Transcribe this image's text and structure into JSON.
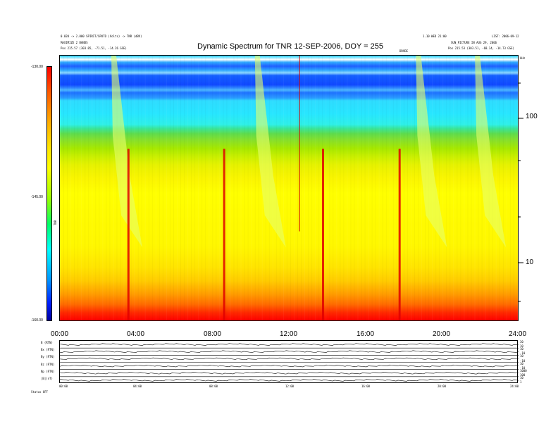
{
  "header": {
    "left_line1": "0.020 -> 2.000 SPIRIT/SPUTD (Volts) -> TNR (dBV)",
    "left_line2": "MAXIMIZE 2 BANDS",
    "left_line3": "Pos    215.57 (303.05, -71.51, -14.26 GSE)",
    "right_line1": "1.10 WED 21:00",
    "right_line2": "SUN_PICTURE IN AUG 29, 2006",
    "right_line3": "Pos    215.53 (303.51, -68.14, -14.73 GSE)",
    "far_right": "LIST: 2006-09-12"
  },
  "chart_data": [
    {
      "type": "heatmap",
      "title": "Dynamic Spectrum for TNR 12-SEP-2006, DOY = 255",
      "xlabel": "",
      "ylabel": "",
      "x_ticks": [
        "00:00",
        "04:00",
        "08:00",
        "12:00",
        "16:00",
        "20:00",
        "24:00"
      ],
      "xlim": [
        "00:00",
        "24:00"
      ],
      "y_ticks": [
        "100",
        "10"
      ],
      "y_unit": "kHz",
      "y_scale": "log",
      "colorbar": {
        "label": "TNR",
        "ticks": [
          "-130.00",
          "-145.00",
          "-160.00"
        ],
        "colors": [
          "#ff0000",
          "#ffff00",
          "#00ffff",
          "#0000a0"
        ]
      },
      "marker_label": "DRVDE",
      "events": [
        {
          "time": "02:50",
          "type": "drifting-burst"
        },
        {
          "time": "03:35",
          "type": "intense-vertical"
        },
        {
          "time": "08:35",
          "type": "intense-vertical"
        },
        {
          "time": "10:20",
          "type": "drifting-burst"
        },
        {
          "time": "12:30",
          "type": "instrumental-line"
        },
        {
          "time": "13:45",
          "type": "intense-vertical"
        },
        {
          "time": "17:45",
          "type": "intense-vertical"
        },
        {
          "time": "18:45",
          "type": "drifting-burst"
        },
        {
          "time": "21:50",
          "type": "drifting-burst"
        }
      ]
    },
    {
      "type": "line",
      "title": "",
      "panels": [
        {
          "label": "B (RTN)",
          "right_ticks": [
            "30",
            "10"
          ]
        },
        {
          "label": "Bx (RTN)",
          "right_ticks": [
            "10",
            "-10"
          ]
        },
        {
          "label": "By (RTN)",
          "right_ticks": [
            "10",
            "-10"
          ]
        },
        {
          "label": "Bz (RTN)",
          "right_ticks": [
            "10",
            "-10"
          ]
        },
        {
          "label": "Np (RTN)",
          "right_ticks": [
            "1000",
            "100"
          ]
        },
        {
          "label": "|B|(nT)",
          "right_ticks": [
            "10",
            "1"
          ]
        }
      ],
      "x_ticks": [
        "00:00",
        "04:00",
        "08:00",
        "12:00",
        "16:00",
        "20:00",
        "24:00"
      ],
      "footer_label": "Status   OFF"
    }
  ]
}
